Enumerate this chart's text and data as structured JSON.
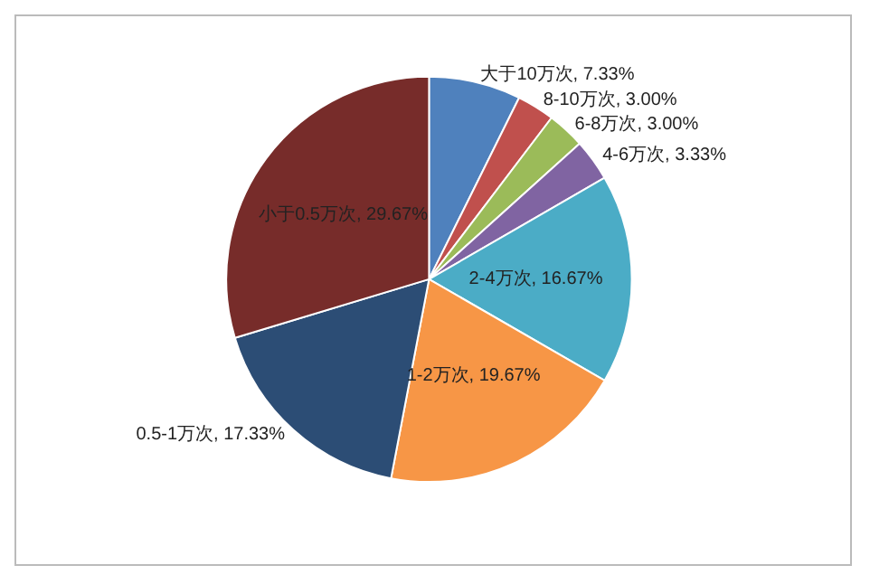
{
  "chart_data": {
    "type": "pie",
    "categories": [
      "大于10万次",
      "8-10万次",
      "6-8万次",
      "4-6万次",
      "2-4万次",
      "1-2万次",
      "0.5-1万次",
      "小于0.5万次"
    ],
    "values": [
      7.33,
      3.0,
      3.0,
      3.33,
      16.67,
      19.67,
      17.33,
      29.67
    ],
    "colors": [
      "#4f81bd",
      "#c0504d",
      "#9bbb59",
      "#8064a2",
      "#4bacc6",
      "#f79646",
      "#2c4d75",
      "#772c2a"
    ],
    "value_labels": [
      ", 7.33%",
      ", 3.00%",
      ", 3.00%",
      ", 3.33%",
      ", 16.67%",
      ", 19.67%",
      ", 17.33%",
      ", 29.67%"
    ],
    "legend": false
  }
}
